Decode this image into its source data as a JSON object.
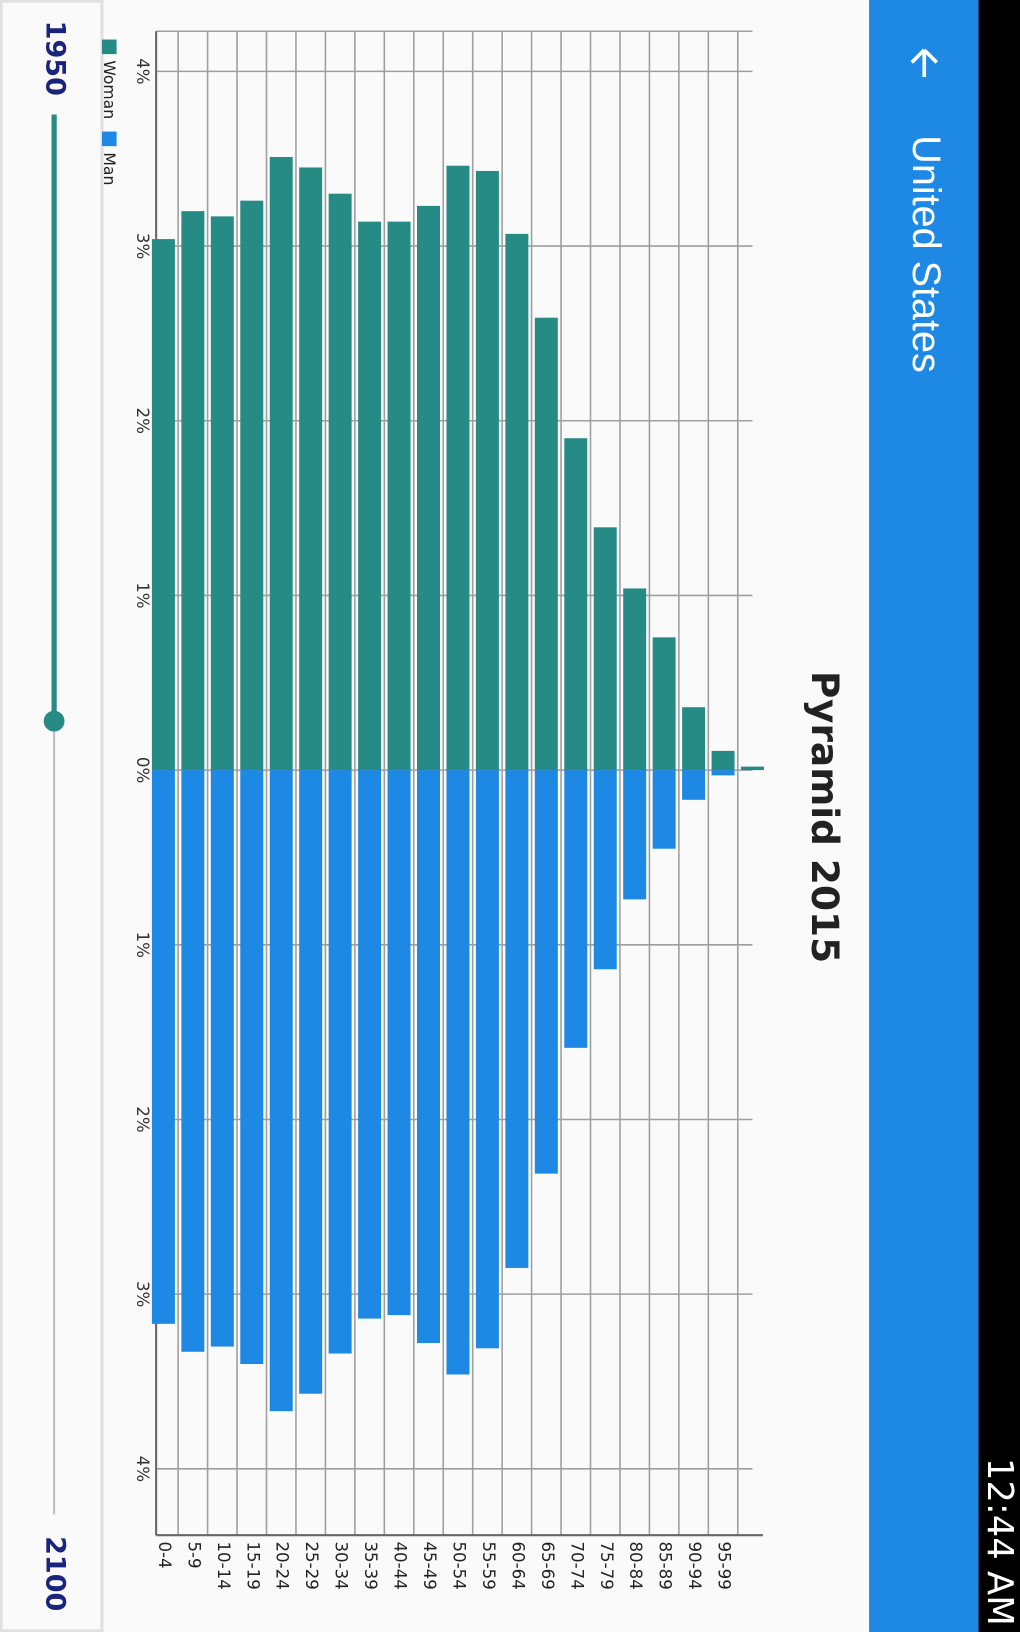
{
  "status_bar": {
    "time": "12:44 AM"
  },
  "app_bar": {
    "title": "United States"
  },
  "chart_data": {
    "type": "bar",
    "orientation": "horizontal",
    "title": "Pyramid 2015",
    "categories": [
      "0-4",
      "5-9",
      "10-14",
      "15-19",
      "20-24",
      "25-29",
      "30-34",
      "35-39",
      "40-44",
      "45-49",
      "50-54",
      "55-59",
      "60-64",
      "65-69",
      "70-74",
      "75-79",
      "80-84",
      "85-89",
      "90-94",
      "95-99",
      null
    ],
    "series": [
      {
        "name": "Woman",
        "color": "#268b85",
        "values": [
          -3.04,
          -3.2,
          -3.17,
          -3.26,
          -3.51,
          -3.45,
          -3.3,
          -3.14,
          -3.14,
          -3.23,
          -3.46,
          -3.43,
          -3.07,
          -2.59,
          -1.9,
          -1.39,
          -1.04,
          -0.76,
          -0.36,
          -0.11,
          -0.02
        ]
      },
      {
        "name": "Man",
        "color": "#1e88e5",
        "values": [
          3.17,
          3.33,
          3.3,
          3.4,
          3.67,
          3.57,
          3.34,
          3.14,
          3.12,
          3.28,
          3.46,
          3.31,
          2.85,
          2.31,
          1.59,
          1.14,
          0.74,
          0.45,
          0.17,
          0.03,
          0.0
        ]
      }
    ],
    "xlim": [
      -4.23,
      4.38
    ],
    "xticks": [
      {
        "value": -4,
        "label": "4%"
      },
      {
        "value": -3,
        "label": "3%"
      },
      {
        "value": -2,
        "label": "2%"
      },
      {
        "value": -1,
        "label": "1%"
      },
      {
        "value": 0,
        "label": "0%"
      },
      {
        "value": 1,
        "label": "1%"
      },
      {
        "value": 2,
        "label": "2%"
      },
      {
        "value": 3,
        "label": "3%"
      },
      {
        "value": 4,
        "label": "4%"
      }
    ],
    "grid": true
  },
  "slider": {
    "min": 1950,
    "max": 2100,
    "value": 2015,
    "color": "#268b85"
  }
}
